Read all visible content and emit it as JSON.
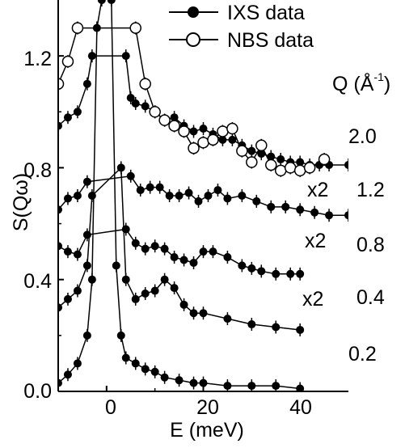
{
  "chart_data": {
    "type": "scatter",
    "xlabel": "E (meV)",
    "ylabel": "S(Qω)",
    "xlim": [
      -10,
      50
    ],
    "ylim": [
      0,
      1.4
    ],
    "xticks": [
      0,
      20,
      40
    ],
    "yticks": [
      0.0,
      0.4,
      0.8,
      1.2
    ],
    "xtick_labels": [
      "0",
      "20",
      "40"
    ],
    "ytick_labels": [
      "0.0",
      "0.4",
      "0.8",
      "1.2"
    ],
    "legend": [
      {
        "label": "IXS data",
        "marker": "filled-circle"
      },
      {
        "label": "NBS data",
        "marker": "open-circle"
      }
    ],
    "legend_position": "top-right",
    "q_header": "Q (Å",
    "q_header_sup": "-1",
    "q_header_close": ")",
    "annotations": {
      "q_values": [
        "2.0",
        "1.2",
        "0.8",
        "0.4",
        "0.2"
      ],
      "scale_labels": [
        "x2",
        "x2",
        "x2"
      ]
    },
    "series": [
      {
        "name": "IXS data",
        "marker": "filled",
        "q": "0.2",
        "x": [
          -10,
          -8,
          -6,
          -4,
          -3,
          -2,
          -1,
          0,
          1,
          2,
          3,
          4,
          6,
          8,
          10,
          12,
          15,
          18,
          20,
          25,
          30,
          35,
          40
        ],
        "y": [
          0.03,
          0.06,
          0.1,
          0.2,
          0.4,
          1.3,
          1.4,
          1.45,
          1.4,
          0.45,
          0.2,
          0.12,
          0.1,
          0.08,
          0.07,
          0.05,
          0.04,
          0.03,
          0.03,
          0.02,
          0.02,
          0.02,
          0.01
        ]
      },
      {
        "name": "IXS data",
        "marker": "filled",
        "q": "0.4",
        "x": [
          -10,
          -8,
          -6,
          -4,
          -3,
          3,
          4,
          6,
          8,
          10,
          12,
          14,
          16,
          18,
          20,
          25,
          30,
          35,
          40
        ],
        "y": [
          0.3,
          0.33,
          0.36,
          0.45,
          0.7,
          0.8,
          0.4,
          0.33,
          0.35,
          0.36,
          0.4,
          0.37,
          0.31,
          0.28,
          0.28,
          0.26,
          0.24,
          0.23,
          0.22
        ]
      },
      {
        "name": "IXS data",
        "marker": "filled",
        "q": "0.8",
        "x": [
          -10,
          -8,
          -6,
          -4,
          4,
          6,
          8,
          10,
          12,
          14,
          16,
          18,
          20,
          22,
          25,
          28,
          30,
          32,
          35,
          38,
          40
        ],
        "y": [
          0.52,
          0.5,
          0.49,
          0.56,
          0.58,
          0.53,
          0.51,
          0.52,
          0.51,
          0.48,
          0.47,
          0.46,
          0.5,
          0.5,
          0.48,
          0.45,
          0.44,
          0.43,
          0.42,
          0.42,
          0.42
        ]
      },
      {
        "name": "IXS data",
        "marker": "filled",
        "q": "1.2",
        "x": [
          -10,
          -8,
          -6,
          -4,
          5,
          7,
          9,
          11,
          13,
          15,
          17,
          19,
          21,
          23,
          25,
          28,
          31,
          34,
          37,
          40,
          43,
          46,
          50
        ],
        "y": [
          0.65,
          0.69,
          0.7,
          0.75,
          0.77,
          0.72,
          0.73,
          0.73,
          0.7,
          0.7,
          0.71,
          0.68,
          0.7,
          0.72,
          0.69,
          0.7,
          0.68,
          0.66,
          0.66,
          0.65,
          0.64,
          0.63,
          0.63
        ]
      },
      {
        "name": "IXS data",
        "marker": "filled",
        "q": "2.0",
        "x": [
          -10,
          -8,
          -6,
          -4,
          -3,
          4,
          5,
          6,
          8,
          10,
          12,
          14,
          16,
          18,
          20,
          22,
          24,
          26,
          28,
          30,
          32,
          34,
          36,
          38,
          40,
          42,
          44,
          46,
          50
        ],
        "y": [
          0.95,
          0.98,
          1.0,
          1.1,
          1.2,
          1.2,
          1.05,
          1.03,
          1.02,
          1.0,
          0.97,
          0.98,
          0.95,
          0.93,
          0.94,
          0.92,
          0.9,
          0.9,
          0.88,
          0.86,
          0.85,
          0.84,
          0.83,
          0.82,
          0.82,
          0.81,
          0.81,
          0.81,
          0.81
        ]
      },
      {
        "name": "NBS data",
        "marker": "open",
        "q": "2.0",
        "x": [
          -10,
          -8,
          -6,
          6,
          8,
          10,
          12,
          14,
          16,
          18,
          20,
          22,
          24,
          26,
          28,
          30,
          32,
          34,
          36,
          38,
          40,
          42,
          45
        ],
        "y": [
          1.1,
          1.18,
          1.3,
          1.3,
          1.1,
          1.0,
          0.97,
          0.95,
          0.93,
          0.87,
          0.89,
          0.9,
          0.93,
          0.94,
          0.86,
          0.82,
          0.88,
          0.81,
          0.79,
          0.8,
          0.79,
          0.8,
          0.83
        ]
      }
    ]
  }
}
